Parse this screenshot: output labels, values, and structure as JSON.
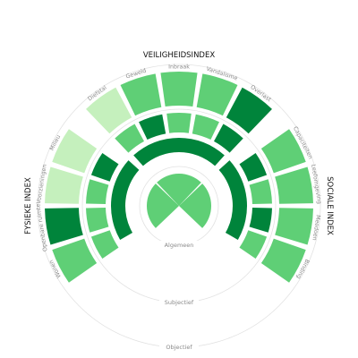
{
  "colors": {
    "level_1": "#c5f0bd",
    "level_2": "#86df8e",
    "level_3": "#5fcf76",
    "level_4": "#1a9a40",
    "level_5": "#00843b",
    "guide": "#e2e2e2"
  },
  "chart_data": {
    "type": "radial-heatmap",
    "indices": [
      {
        "key": "veiligheid",
        "title": "VEILIGHEIDSINDEX"
      },
      {
        "key": "sociaal",
        "title": "SOCIALE INDEX"
      },
      {
        "key": "fysiek",
        "title": "FYSIEKE INDEX"
      }
    ],
    "rings": [
      {
        "key": "algemeen",
        "label": "Algemeen"
      },
      {
        "key": "subjectief",
        "label": "Subjectief"
      },
      {
        "key": "objectief",
        "label": "Objectief"
      }
    ],
    "scale": "level 1 (lightest) to 5 (darkest)",
    "values": {
      "algemeen": {
        "veiligheid": 3,
        "sociaal": 3,
        "fysiek": 3
      },
      "subjectief_inner": {
        "veiligheid": 5,
        "sociaal": 5,
        "fysiek": 5
      },
      "subjectief_outer": {
        "veiligheid": [
          3,
          5,
          3,
          3,
          5
        ],
        "sociaal": [
          5,
          3,
          5,
          3
        ],
        "fysiek": [
          3,
          3,
          3,
          5
        ]
      }
    },
    "categories": {
      "veiligheid": [
        {
          "label": "Diefstal",
          "level": 1
        },
        {
          "label": "Geweld",
          "level": 3
        },
        {
          "label": "Inbraak",
          "level": 3
        },
        {
          "label": "Vandalisme",
          "level": 3
        },
        {
          "label": "Overlast",
          "level": 5
        }
      ],
      "sociaal": [
        {
          "label": "Capaciteiten",
          "level": 3
        },
        {
          "label": "Leefomgeving",
          "level": 3
        },
        {
          "label": "Meedoen",
          "level": 3
        },
        {
          "label": "Binding",
          "level": 3
        }
      ],
      "fysiek": [
        {
          "label": "Wonen",
          "level": 3
        },
        {
          "label": "Openbare ruimte",
          "level": 5
        },
        {
          "label": "Voorzieningen",
          "level": 1
        },
        {
          "label": "Milieu",
          "level": 1
        }
      ]
    }
  }
}
